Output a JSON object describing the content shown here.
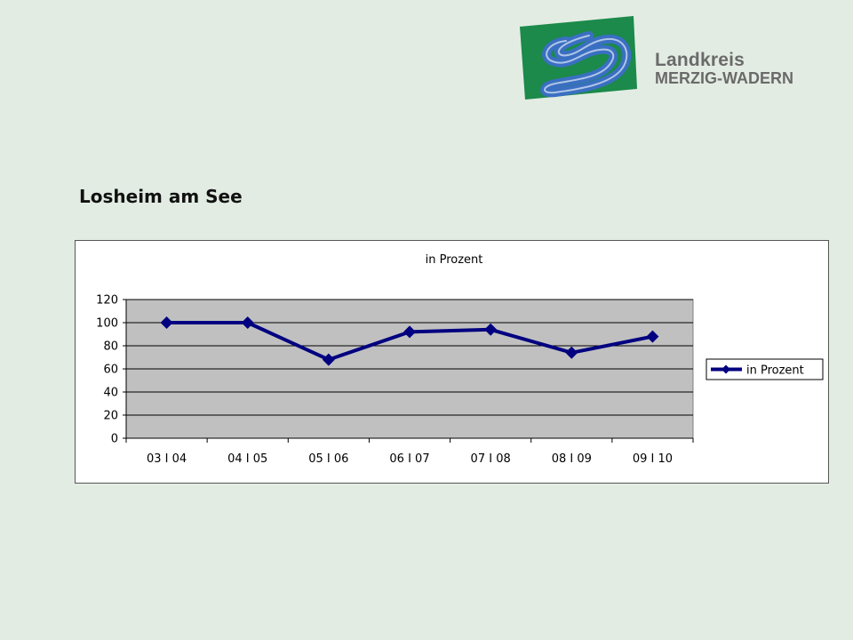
{
  "brand": {
    "line1": "Landkreis",
    "line2": "MERZIG-WADERN",
    "colors": {
      "green": "#1b8a4a",
      "blue": "#3a6fc2",
      "text": "#6a6a6a"
    }
  },
  "page": {
    "title": "Losheim am See",
    "background": "#e3ece3"
  },
  "chart_data": {
    "type": "line",
    "title": "in Prozent",
    "categories": [
      "03 I 04",
      "04 I 05",
      "05 I 06",
      "06 I 07",
      "07 I 08",
      "08 I 09",
      "09 I 10"
    ],
    "series": [
      {
        "name": "in Prozent",
        "values": [
          100,
          100,
          68,
          92,
          94,
          74,
          88
        ],
        "color": "#000080",
        "marker": "diamond"
      }
    ],
    "ylim": [
      0,
      120
    ],
    "yticks": [
      0,
      20,
      40,
      60,
      80,
      100,
      120
    ],
    "grid": true,
    "plot_background": "#c0c0c0",
    "legend_position": "right"
  }
}
